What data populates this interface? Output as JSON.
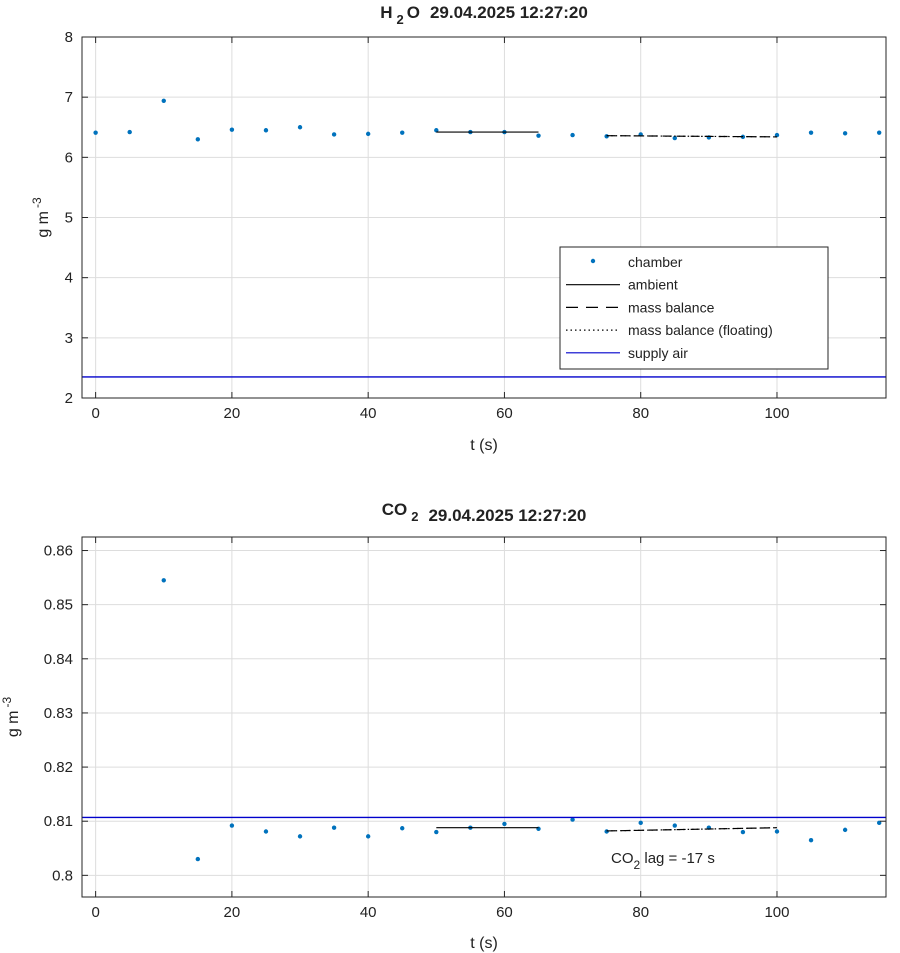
{
  "chart_data": [
    {
      "type": "scatter",
      "title": {
        "species": "H",
        "species_sub": "2",
        "species_tail": "O",
        "timestamp": "29.04.2025 12:27:20"
      },
      "xlabel": "t (s)",
      "ylabel": {
        "base": "g m",
        "exponent": "-3"
      },
      "xlim": [
        -2,
        116
      ],
      "ylim": [
        2,
        8
      ],
      "xticks": [
        0,
        20,
        40,
        60,
        80,
        100
      ],
      "yticks": [
        2,
        3,
        4,
        5,
        6,
        7,
        8
      ],
      "grid": true,
      "legend_position": "lower-right",
      "legend": [
        {
          "label": "chamber",
          "style": "dot"
        },
        {
          "label": "ambient",
          "style": "solid"
        },
        {
          "label": "mass balance",
          "style": "dashed"
        },
        {
          "label": "mass balance (floating)",
          "style": "dotted"
        },
        {
          "label": "supply air",
          "style": "solid-blue"
        }
      ],
      "series": [
        {
          "name": "chamber",
          "x": [
            0,
            5,
            10,
            15,
            20,
            25,
            30,
            35,
            40,
            45,
            50,
            55,
            60,
            65,
            70,
            75,
            80,
            85,
            90,
            95,
            100,
            105,
            110,
            115
          ],
          "y": [
            6.41,
            6.42,
            6.94,
            6.3,
            6.46,
            6.45,
            6.5,
            6.38,
            6.39,
            6.41,
            6.45,
            6.42,
            6.42,
            6.36,
            6.37,
            6.35,
            6.38,
            6.32,
            6.33,
            6.34,
            6.37,
            6.41,
            6.4,
            6.41
          ]
        },
        {
          "name": "ambient",
          "x": [
            50,
            65
          ],
          "y": [
            6.42,
            6.42
          ]
        },
        {
          "name": "mass balance",
          "x": [
            75,
            100
          ],
          "y": [
            6.36,
            6.34
          ]
        },
        {
          "name": "mass balance (floating)",
          "x": [
            75,
            100
          ],
          "y": [
            6.36,
            6.34
          ]
        },
        {
          "name": "supply air",
          "x": [
            -2,
            116
          ],
          "y": [
            2.35,
            2.35
          ]
        }
      ]
    },
    {
      "type": "scatter",
      "title": {
        "species": "CO",
        "species_sub": "2",
        "species_tail": "",
        "timestamp": "29.04.2025 12:27:20"
      },
      "xlabel": "t (s)",
      "ylabel": {
        "base": "g m",
        "exponent": "-3"
      },
      "xlim": [
        -2,
        116
      ],
      "ylim": [
        0.796,
        0.8625
      ],
      "xticks": [
        0,
        20,
        40,
        60,
        80,
        100
      ],
      "yticks": [
        0.8,
        0.81,
        0.82,
        0.83,
        0.84,
        0.85,
        0.86
      ],
      "ytick_labels": [
        "0.8",
        "0.81",
        "0.82",
        "0.83",
        "0.84",
        "0.85",
        "0.86"
      ],
      "grid": true,
      "annotation": {
        "prefix": "CO",
        "sub": "2",
        "text": " lag = -17 s"
      },
      "series": [
        {
          "name": "chamber",
          "x": [
            10,
            15,
            20,
            25,
            30,
            35,
            40,
            45,
            50,
            55,
            60,
            65,
            70,
            75,
            80,
            85,
            90,
            95,
            100,
            105,
            110,
            115
          ],
          "y": [
            0.8545,
            0.803,
            0.8092,
            0.8081,
            0.8072,
            0.8088,
            0.8072,
            0.8087,
            0.808,
            0.8088,
            0.8095,
            0.8086,
            0.8103,
            0.8081,
            0.8097,
            0.8092,
            0.8088,
            0.808,
            0.8081,
            0.8065,
            0.8084,
            0.8097
          ]
        },
        {
          "name": "ambient",
          "x": [
            50,
            65
          ],
          "y": [
            0.8088,
            0.8088
          ]
        },
        {
          "name": "mass balance",
          "x": [
            75,
            100
          ],
          "y": [
            0.8082,
            0.8088
          ]
        },
        {
          "name": "mass balance (floating)",
          "x": [
            75,
            100
          ],
          "y": [
            0.8082,
            0.8088
          ]
        },
        {
          "name": "supply air",
          "x": [
            -2,
            116
          ],
          "y": [
            0.8107,
            0.8107
          ]
        }
      ]
    }
  ],
  "colors": {
    "chamber": "#0072BD",
    "supply_air": "#0000CC",
    "lines": "#000000",
    "grid": "#DDDDDD",
    "axes": "#262626"
  }
}
